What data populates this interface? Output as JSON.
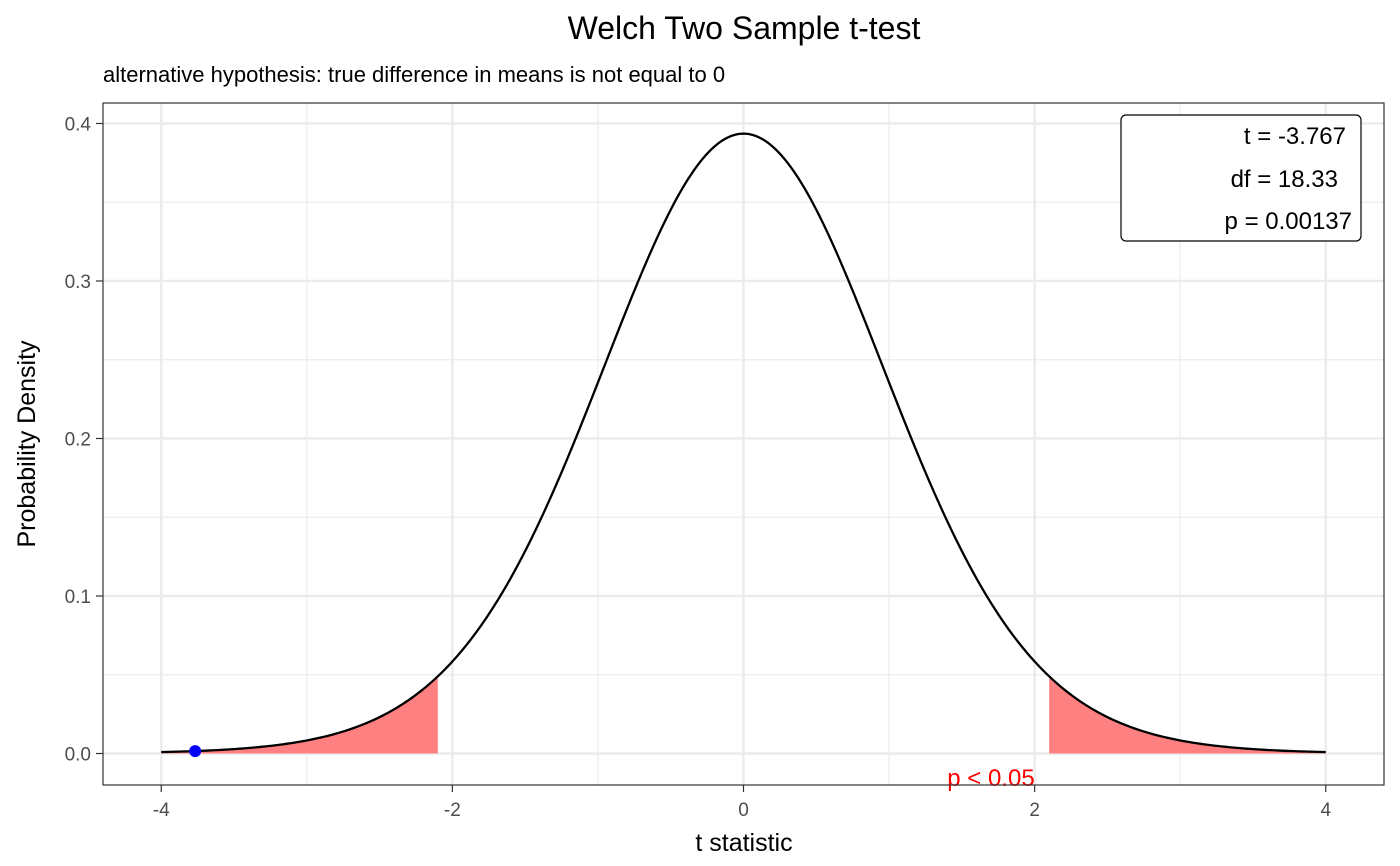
{
  "chart_data": {
    "type": "line",
    "title": "Welch Two Sample t-test",
    "subtitle": "alternative hypothesis: true difference in means is not equal to 0",
    "xlabel": "t statistic",
    "ylabel": "Probability Density",
    "xlim": [
      -4.4,
      4.4
    ],
    "ylim": [
      -0.02,
      0.413
    ],
    "x_ticks": [
      -4,
      -2,
      0,
      2,
      4
    ],
    "x_tick_labels": [
      "-4",
      "-2",
      "0",
      "2",
      "4"
    ],
    "y_ticks": [
      0.0,
      0.1,
      0.2,
      0.3,
      0.4
    ],
    "y_tick_labels": [
      "0.0",
      "0.1",
      "0.2",
      "0.3",
      "0.4"
    ],
    "grid": true,
    "curve": {
      "distribution": "t",
      "df": 18.33,
      "x_range": [
        -4,
        4
      ],
      "color": "#000000"
    },
    "rejection_regions": {
      "lower": [
        -4,
        -2.1
      ],
      "upper": [
        2.1,
        4
      ],
      "color": "#ff8080"
    },
    "observed_point": {
      "x": -3.767,
      "y": 0.0015,
      "color": "#0000ff"
    },
    "stats_box": {
      "lines": [
        "t = -3.767",
        "df = 18.33",
        "p = 0.00137"
      ],
      "position": "top-right"
    },
    "annotation": {
      "text": "p < 0.05",
      "x": 1.7,
      "y": -0.015,
      "color": "#ff0000"
    }
  }
}
